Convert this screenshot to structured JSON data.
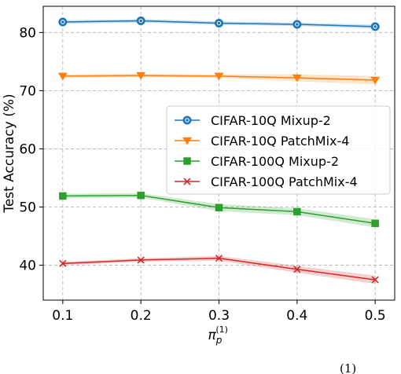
{
  "chart_data": {
    "type": "line",
    "x": [
      0.1,
      0.2,
      0.3,
      0.4,
      0.5
    ],
    "xlabel": "π_p^(1)",
    "xlabel_parts": {
      "base": "π",
      "sub": "p",
      "sup": "(1)"
    },
    "ylabel": "Test Accuracy (%)",
    "xlim": [
      0.075,
      0.525
    ],
    "ylim": [
      34,
      84.5
    ],
    "xticks": [
      0.1,
      0.2,
      0.3,
      0.4,
      0.5
    ],
    "xtick_labels": [
      "0.1",
      "0.2",
      "0.3",
      "0.4",
      "0.5"
    ],
    "yticks": [
      40,
      50,
      60,
      70,
      80
    ],
    "ytick_labels": [
      "40",
      "50",
      "60",
      "70",
      "80"
    ],
    "grid": true,
    "legend_position": "center-right",
    "series": [
      {
        "name": "CIFAR-10Q Mixup-2",
        "color": "#1f77b4",
        "marker": "circle",
        "values": [
          81.8,
          82.0,
          81.6,
          81.4,
          81.0
        ],
        "band": [
          0.3,
          0.3,
          0.3,
          0.3,
          0.35
        ]
      },
      {
        "name": "CIFAR-10Q PatchMix-4",
        "color": "#ff7f0e",
        "marker": "triangle-down",
        "values": [
          72.5,
          72.6,
          72.5,
          72.2,
          71.8
        ],
        "band": [
          0.3,
          0.3,
          0.3,
          0.6,
          0.7
        ]
      },
      {
        "name": "CIFAR-100Q Mixup-2",
        "color": "#2ca02c",
        "marker": "square",
        "values": [
          51.9,
          52.0,
          49.9,
          49.2,
          47.2
        ],
        "band": [
          0.4,
          0.4,
          0.6,
          0.6,
          0.7
        ]
      },
      {
        "name": "CIFAR-100Q PatchMix-4",
        "color": "#d62728",
        "marker": "x",
        "values": [
          40.3,
          40.9,
          41.2,
          39.3,
          37.5
        ],
        "band": [
          0.3,
          0.3,
          0.4,
          0.6,
          0.7
        ]
      }
    ]
  },
  "footer_fragment": "(1)"
}
